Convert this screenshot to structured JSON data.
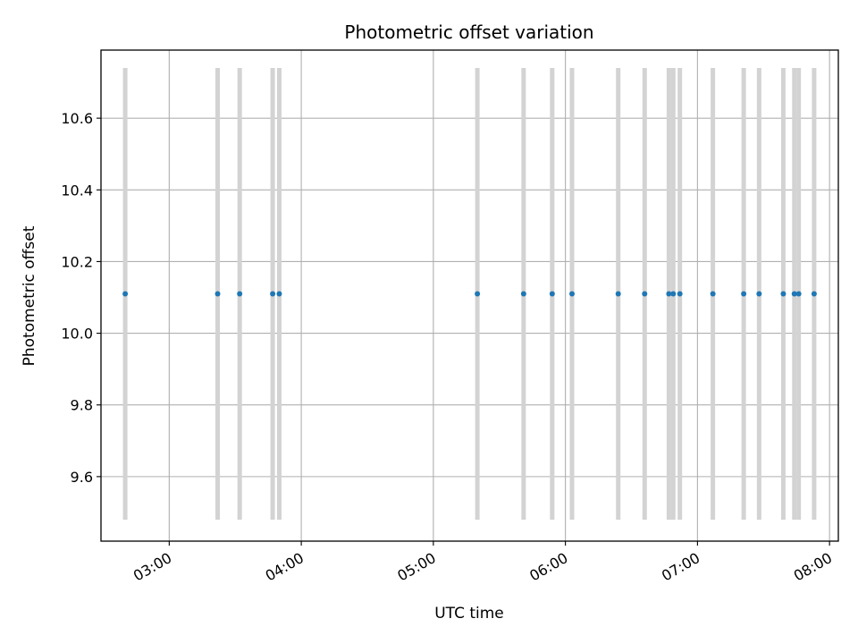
{
  "chart_data": {
    "type": "scatter",
    "title": "Photometric offset variation",
    "xlabel": "UTC time",
    "ylabel": "Photometric offset",
    "x_axis_unit": "HH:MM",
    "xlim": [
      "02:29",
      "08:04"
    ],
    "ylim": [
      9.42,
      10.79
    ],
    "grid": true,
    "x_ticks": [
      "03:00",
      "04:00",
      "05:00",
      "06:00",
      "07:00",
      "08:00"
    ],
    "y_ticks": [
      9.6,
      9.8,
      10.0,
      10.2,
      10.4,
      10.6
    ],
    "y_tick_labels": [
      "9.6",
      "9.8",
      "10.0",
      "10.2",
      "10.4",
      "10.6"
    ],
    "error_bar_range": [
      9.48,
      10.74
    ],
    "series": [
      {
        "color": "#1f77b4",
        "error_bar_color": "#d3d3d3",
        "points": [
          {
            "x": "02:40",
            "y": 10.11
          },
          {
            "x": "03:22",
            "y": 10.11
          },
          {
            "x": "03:32",
            "y": 10.11
          },
          {
            "x": "03:47",
            "y": 10.11
          },
          {
            "x": "03:50",
            "y": 10.11
          },
          {
            "x": "05:20",
            "y": 10.11
          },
          {
            "x": "05:41",
            "y": 10.11
          },
          {
            "x": "05:54",
            "y": 10.11
          },
          {
            "x": "06:03",
            "y": 10.11
          },
          {
            "x": "06:24",
            "y": 10.11
          },
          {
            "x": "06:36",
            "y": 10.11
          },
          {
            "x": "06:47",
            "y": 10.11
          },
          {
            "x": "06:49",
            "y": 10.11
          },
          {
            "x": "06:52",
            "y": 10.11
          },
          {
            "x": "07:07",
            "y": 10.11
          },
          {
            "x": "07:21",
            "y": 10.11
          },
          {
            "x": "07:28",
            "y": 10.11
          },
          {
            "x": "07:39",
            "y": 10.11
          },
          {
            "x": "07:44",
            "y": 10.11
          },
          {
            "x": "07:46",
            "y": 10.11
          },
          {
            "x": "07:53",
            "y": 10.11
          }
        ]
      }
    ]
  }
}
